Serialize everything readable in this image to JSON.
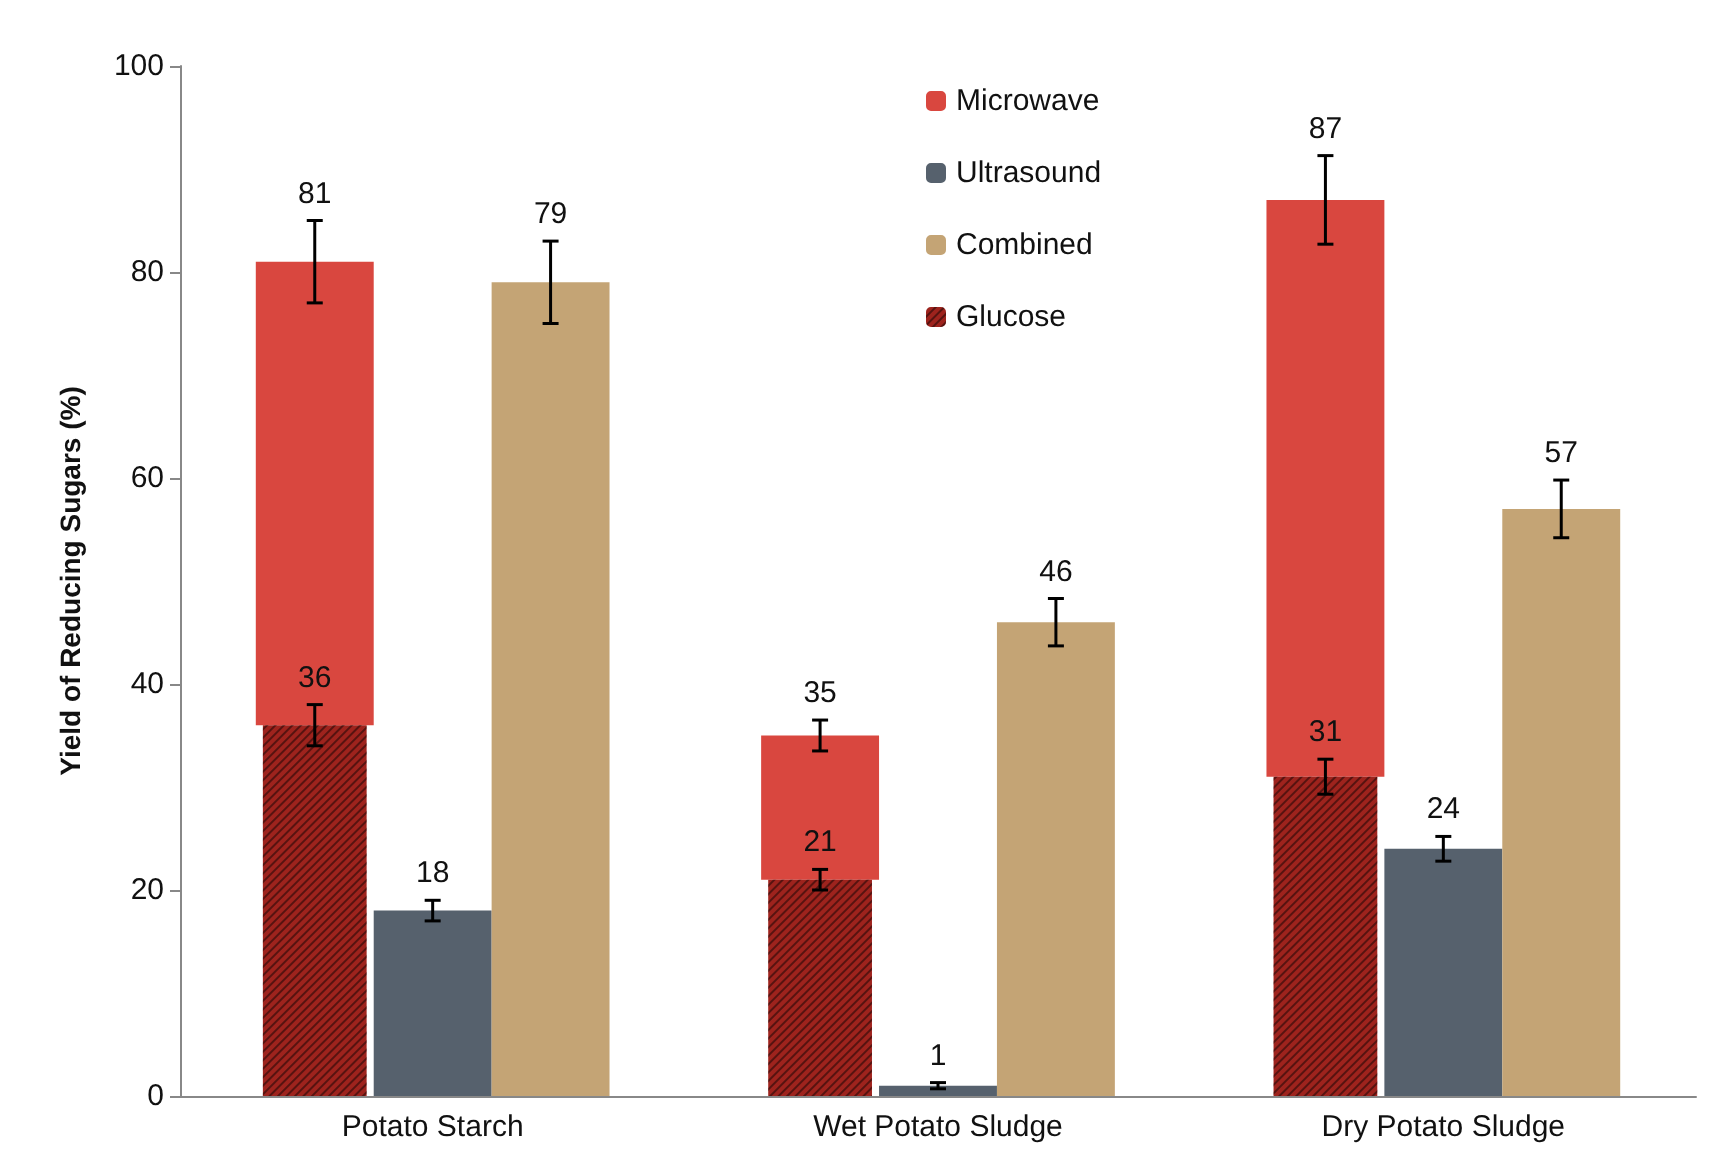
{
  "chart_data": {
    "type": "bar",
    "ylabel": "Yield of Reducing Sugars (%)",
    "categories": [
      "Potato Starch",
      "Wet Potato Sludge",
      "Dry Potato Sludge"
    ],
    "series": [
      {
        "name": "Glucose",
        "color": "#9e231d",
        "values": [
          36,
          21,
          31
        ],
        "errors": [
          2,
          1,
          1.7
        ],
        "value_labels": [
          "36",
          "21",
          "31"
        ]
      },
      {
        "name": "Microwave",
        "color": "#d9473f",
        "base": [
          36,
          21,
          31
        ],
        "values": [
          45,
          14,
          56
        ],
        "errors": [
          4,
          1.5,
          4.3
        ],
        "value_labels": [
          "81",
          "35",
          "87"
        ]
      },
      {
        "name": "Ultrasound",
        "color": "#56616d",
        "values": [
          18,
          1,
          24
        ],
        "errors": [
          1,
          0.3,
          1.2
        ],
        "value_labels": [
          "18",
          "1",
          "24"
        ]
      },
      {
        "name": "Combined",
        "color": "#c4a475",
        "values": [
          79,
          46,
          57
        ],
        "errors": [
          4,
          2.3,
          2.8
        ],
        "value_labels": [
          "79",
          "46",
          "57"
        ]
      }
    ],
    "ylim": [
      0,
      100
    ],
    "yticks": [
      0,
      20,
      40,
      60,
      80,
      100
    ],
    "grid": false,
    "legend": "top"
  }
}
